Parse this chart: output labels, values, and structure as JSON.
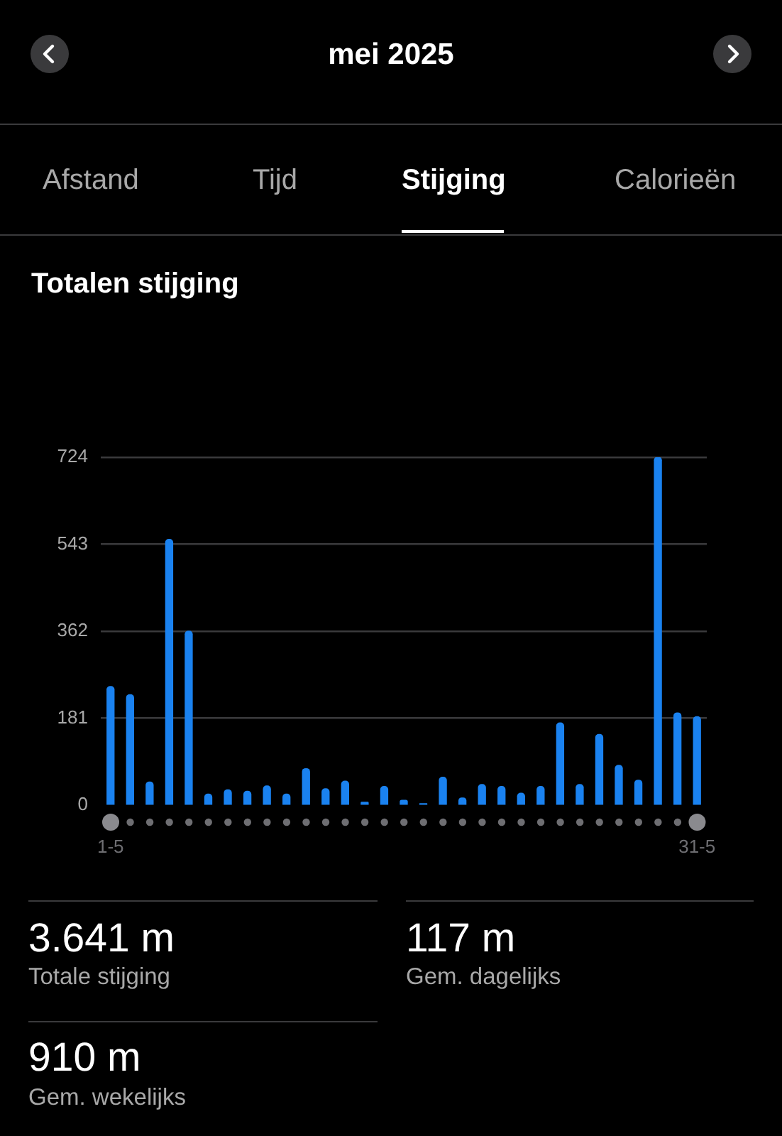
{
  "chart_data": {
    "type": "bar",
    "title": "Totalen stijging",
    "categories": [
      "1-5",
      null,
      null,
      null,
      null,
      null,
      null,
      null,
      null,
      null,
      null,
      null,
      null,
      null,
      null,
      null,
      null,
      null,
      null,
      null,
      null,
      null,
      null,
      null,
      null,
      null,
      null,
      null,
      null,
      null,
      "31-5"
    ],
    "values": [
      247,
      230,
      48,
      553,
      362,
      23,
      32,
      29,
      40,
      23,
      76,
      34,
      50,
      6,
      39,
      10,
      3,
      58,
      15,
      43,
      39,
      25,
      39,
      171,
      43,
      147,
      83,
      52,
      724,
      192,
      184
    ],
    "color": "#1a82f0",
    "ylim": [
      0,
      724
    ],
    "yticks": [
      0,
      181,
      362,
      543,
      724
    ],
    "grid": "y",
    "legend": false,
    "annotations": [
      "mei 2025",
      "Afstand",
      "Tijd",
      "Stijging",
      "Calorieën",
      "3.641 m",
      "Totale stijging",
      "117 m",
      "Gem. dagelijks",
      "910 m",
      "Gem. wekelijks"
    ]
  }
}
